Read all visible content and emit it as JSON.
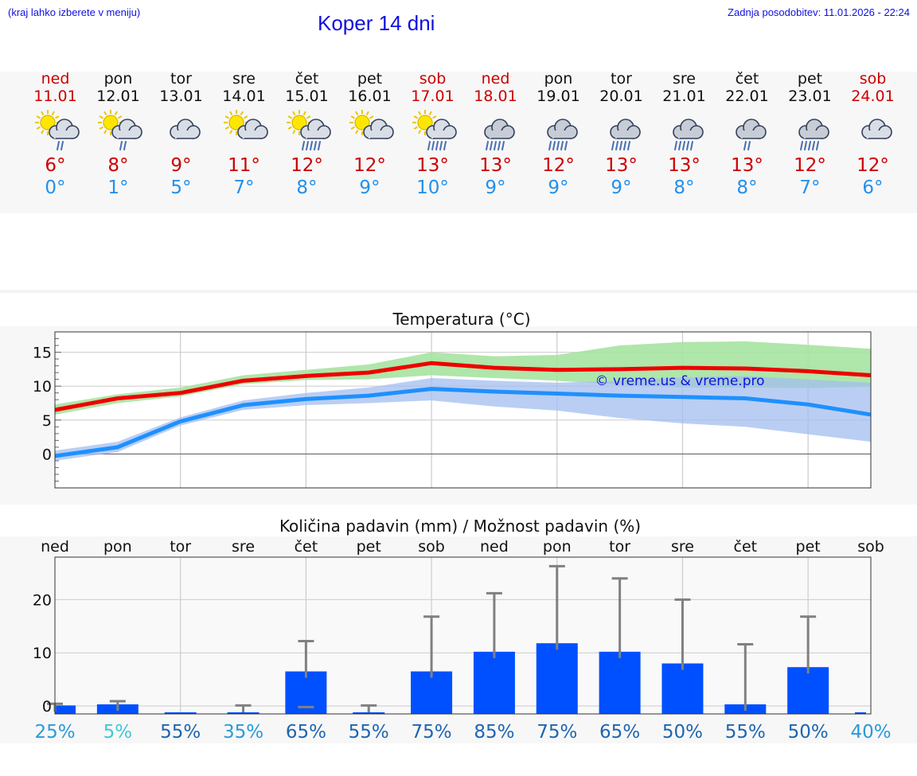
{
  "header": {
    "hint": "(kraj lahko izberete v meniju)",
    "title": "Koper 14 dni",
    "updated": "Zadnja posodobitev: 11.01.2026 - 22:24"
  },
  "days": [
    {
      "name": "ned",
      "date": "11.01",
      "weekend": true,
      "icon": "sun-cloud-light-rain",
      "tmax": "6°",
      "tmin": "0°"
    },
    {
      "name": "pon",
      "date": "12.01",
      "weekend": false,
      "icon": "sun-cloud-light-rain",
      "tmax": "8°",
      "tmin": "1°"
    },
    {
      "name": "tor",
      "date": "13.01",
      "weekend": false,
      "icon": "cloudy",
      "tmax": "9°",
      "tmin": "5°"
    },
    {
      "name": "sre",
      "date": "14.01",
      "weekend": false,
      "icon": "sun-cloud",
      "tmax": "11°",
      "tmin": "7°"
    },
    {
      "name": "čet",
      "date": "15.01",
      "weekend": false,
      "icon": "sun-cloud-rain",
      "tmax": "12°",
      "tmin": "8°"
    },
    {
      "name": "pet",
      "date": "16.01",
      "weekend": false,
      "icon": "sun-cloud",
      "tmax": "12°",
      "tmin": "9°"
    },
    {
      "name": "sob",
      "date": "17.01",
      "weekend": true,
      "icon": "sun-cloud-rain",
      "tmax": "13°",
      "tmin": "10°"
    },
    {
      "name": "ned",
      "date": "18.01",
      "weekend": true,
      "icon": "cloud-rain",
      "tmax": "13°",
      "tmin": "9°"
    },
    {
      "name": "pon",
      "date": "19.01",
      "weekend": false,
      "icon": "cloud-rain",
      "tmax": "12°",
      "tmin": "9°"
    },
    {
      "name": "tor",
      "date": "20.01",
      "weekend": false,
      "icon": "cloud-rain",
      "tmax": "13°",
      "tmin": "9°"
    },
    {
      "name": "sre",
      "date": "21.01",
      "weekend": false,
      "icon": "cloud-rain",
      "tmax": "13°",
      "tmin": "8°"
    },
    {
      "name": "čet",
      "date": "22.01",
      "weekend": false,
      "icon": "cloud-light-rain",
      "tmax": "13°",
      "tmin": "8°"
    },
    {
      "name": "pet",
      "date": "23.01",
      "weekend": false,
      "icon": "cloud-rain",
      "tmax": "12°",
      "tmin": "7°"
    },
    {
      "name": "sob",
      "date": "24.01",
      "weekend": true,
      "icon": "cloudy",
      "tmax": "12°",
      "tmin": "6°"
    }
  ],
  "colors": {
    "weekend": "#cc0000",
    "weekday": "#111111",
    "tmax": "#cc0000",
    "tmin": "#2290ee",
    "max_line": "#ee0000",
    "max_band": "#a6e3a0",
    "min_line": "#1e90ff",
    "min_band": "#a3bdf0",
    "overlap_band": "#7fbfa8",
    "bar": "#0050ff",
    "error": "#808080"
  },
  "chart_data": [
    {
      "type": "line",
      "title": "Temperatura (°C)",
      "x": [
        0,
        1,
        2,
        3,
        4,
        5,
        6,
        7,
        8,
        9,
        10,
        11,
        12,
        13
      ],
      "ylim": [
        -5,
        18
      ],
      "yticks": [
        0,
        5,
        10,
        15
      ],
      "watermark": "© vreme.us & vreme.pro",
      "series": [
        {
          "name": "max",
          "values": [
            6.5,
            8.2,
            9.0,
            10.8,
            11.5,
            12.0,
            13.4,
            12.7,
            12.4,
            12.5,
            12.7,
            12.6,
            12.2,
            11.6
          ],
          "band_low": [
            5.8,
            7.5,
            8.5,
            10.3,
            10.9,
            11.0,
            11.6,
            11.2,
            10.8,
            10.2,
            9.8,
            9.8,
            9.7,
            9.9
          ],
          "band_high": [
            7.3,
            8.8,
            9.8,
            11.6,
            12.4,
            13.2,
            15.0,
            14.4,
            14.6,
            16.0,
            16.5,
            16.6,
            16.1,
            15.5
          ]
        },
        {
          "name": "min",
          "values": [
            -0.3,
            1.0,
            4.8,
            7.2,
            8.1,
            8.6,
            9.6,
            9.2,
            8.9,
            8.6,
            8.4,
            8.2,
            7.3,
            5.8
          ],
          "band_low": [
            -1.0,
            0.3,
            4.2,
            6.5,
            7.2,
            7.5,
            7.9,
            7.0,
            6.4,
            5.3,
            4.5,
            4.0,
            2.9,
            1.8
          ],
          "band_high": [
            0.5,
            1.8,
            5.4,
            7.9,
            9.0,
            9.8,
            11.2,
            10.8,
            10.5,
            10.8,
            11.3,
            11.5,
            11.0,
            10.5
          ]
        }
      ]
    },
    {
      "type": "bar",
      "title": "Količina padavin (mm) / Možnost padavin (%)",
      "categories": [
        "ned",
        "pon",
        "tor",
        "sre",
        "čet",
        "pet",
        "sob",
        "ned",
        "pon",
        "tor",
        "sre",
        "čet",
        "pet",
        "sob"
      ],
      "values": [
        0.1,
        0.3,
        0,
        0,
        6.5,
        0,
        6.5,
        10.2,
        11.8,
        10.2,
        8.0,
        0.3,
        7.3,
        0
      ],
      "error_high": [
        0.4,
        0.9,
        0,
        0.1,
        12.2,
        0.1,
        16.8,
        21.2,
        26.3,
        24.0,
        20.0,
        11.6,
        16.8,
        0
      ],
      "chances": [
        "25%",
        "5%",
        "55%",
        "35%",
        "65%",
        "55%",
        "75%",
        "85%",
        "75%",
        "65%",
        "50%",
        "55%",
        "50%",
        "40%"
      ],
      "chance_colors": [
        "#2a9ad8",
        "#40c8d8",
        "#1e65b0",
        "#2a9ad8",
        "#1e65b0",
        "#1e65b0",
        "#1e65b0",
        "#1e65b0",
        "#1e65b0",
        "#1e65b0",
        "#1e65b0",
        "#1e65b0",
        "#1e65b0",
        "#2a9ad8"
      ],
      "ylim": [
        -1.5,
        28
      ],
      "yticks": [
        0,
        10,
        20
      ]
    }
  ]
}
